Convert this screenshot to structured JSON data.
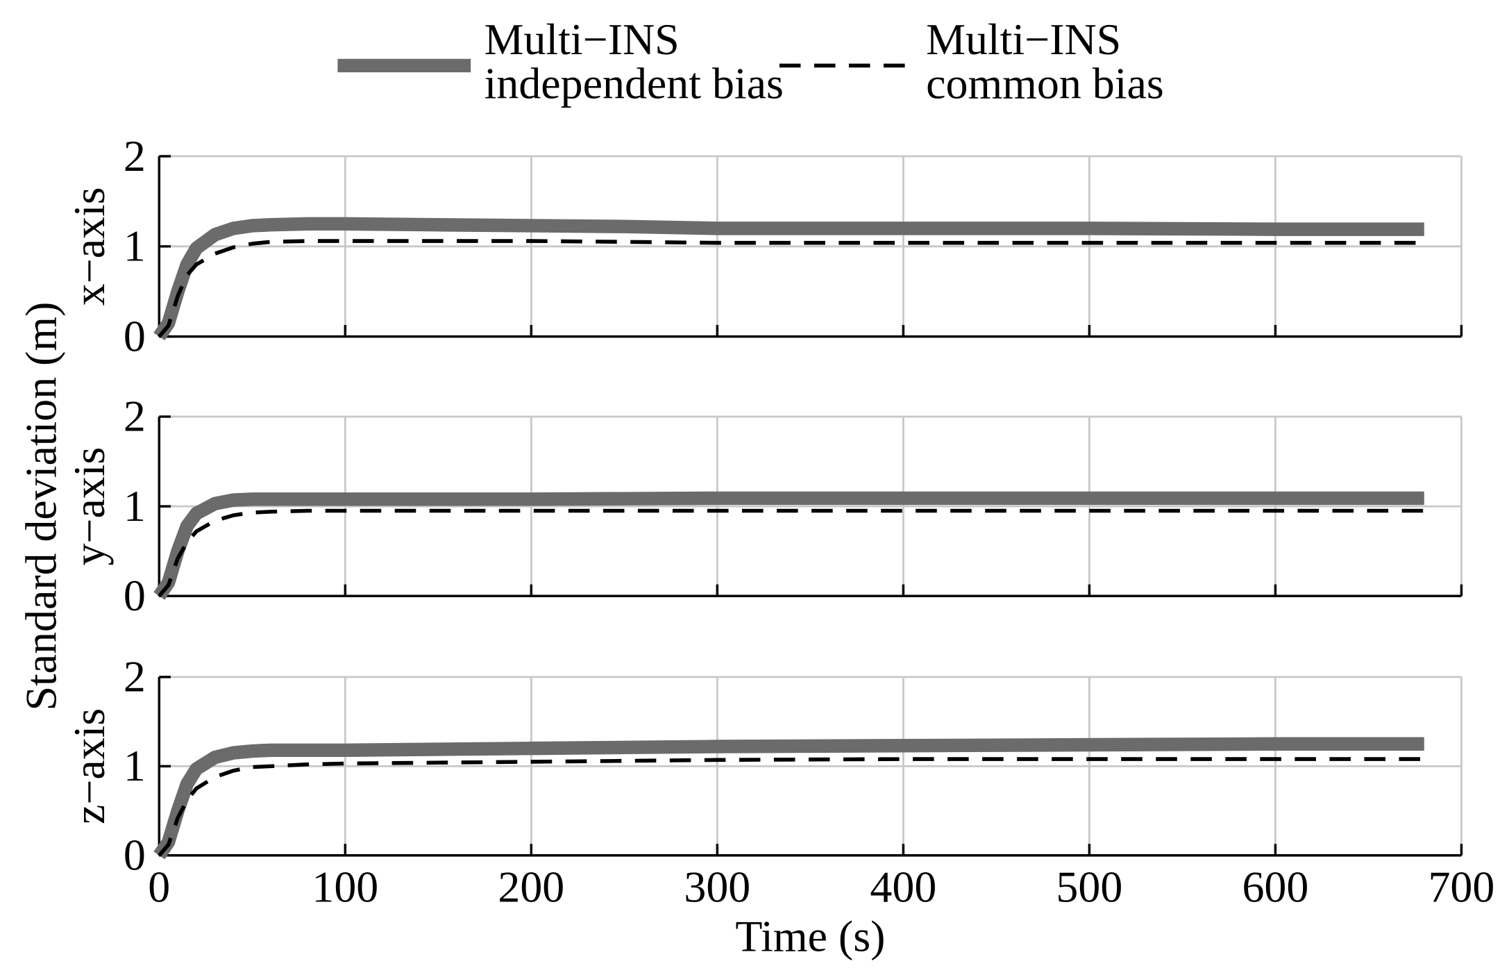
{
  "chart_data": {
    "type": "line",
    "xlabel": "Time (s)",
    "ylabel": "Standard deviation (m)",
    "xlim": [
      0,
      700
    ],
    "xticks": [
      0,
      100,
      200,
      300,
      400,
      500,
      600,
      700
    ],
    "grid": true,
    "legend": {
      "placement": "top-center",
      "entries": [
        {
          "line1": "Multi−INS",
          "line2": "independent bias",
          "color": "#6b6b6b",
          "style": "solid-thick"
        },
        {
          "line1": "Multi−INS",
          "line2": "common bias",
          "color": "#000000",
          "style": "dashed"
        }
      ]
    },
    "panels": [
      {
        "ylabel": "x−axis",
        "ylim": [
          0,
          2
        ],
        "yticks": [
          0,
          1,
          2
        ],
        "series": [
          {
            "name": "Multi−INS independent bias",
            "x": [
              0,
              5,
              10,
              15,
              20,
              30,
              40,
              50,
              60,
              80,
              100,
              150,
              200,
              250,
              300,
              400,
              500,
              600,
              680
            ],
            "y": [
              0,
              0.15,
              0.5,
              0.8,
              0.98,
              1.13,
              1.2,
              1.23,
              1.24,
              1.25,
              1.25,
              1.24,
              1.23,
              1.22,
              1.2,
              1.2,
              1.2,
              1.19,
              1.19
            ]
          },
          {
            "name": "Multi−INS common bias",
            "x": [
              0,
              5,
              10,
              15,
              20,
              30,
              40,
              50,
              60,
              80,
              100,
              150,
              200,
              250,
              300,
              400,
              500,
              600,
              680
            ],
            "y": [
              0,
              0.12,
              0.45,
              0.68,
              0.8,
              0.92,
              0.99,
              1.03,
              1.05,
              1.06,
              1.06,
              1.06,
              1.06,
              1.05,
              1.04,
              1.04,
              1.04,
              1.04,
              1.04
            ]
          }
        ]
      },
      {
        "ylabel": "y−axis",
        "ylim": [
          0,
          2
        ],
        "yticks": [
          0,
          1,
          2
        ],
        "series": [
          {
            "name": "Multi−INS independent bias",
            "x": [
              0,
              5,
              10,
              15,
              20,
              30,
              40,
              50,
              60,
              80,
              100,
              200,
              300,
              400,
              500,
              600,
              680
            ],
            "y": [
              0,
              0.15,
              0.5,
              0.78,
              0.92,
              1.03,
              1.07,
              1.08,
              1.08,
              1.08,
              1.08,
              1.08,
              1.09,
              1.09,
              1.09,
              1.09,
              1.09
            ]
          },
          {
            "name": "Multi−INS common bias",
            "x": [
              0,
              5,
              10,
              15,
              20,
              30,
              40,
              50,
              60,
              80,
              100,
              200,
              300,
              400,
              500,
              600,
              680
            ],
            "y": [
              0,
              0.12,
              0.42,
              0.6,
              0.72,
              0.84,
              0.9,
              0.93,
              0.94,
              0.95,
              0.95,
              0.95,
              0.95,
              0.95,
              0.95,
              0.95,
              0.95
            ]
          }
        ]
      },
      {
        "ylabel": "z−axis",
        "ylim": [
          0,
          2
        ],
        "yticks": [
          0,
          1,
          2
        ],
        "series": [
          {
            "name": "Multi−INS independent bias",
            "x": [
              0,
              5,
              10,
              15,
              20,
              30,
              40,
              50,
              60,
              80,
              100,
              200,
              300,
              400,
              500,
              600,
              680
            ],
            "y": [
              0,
              0.15,
              0.5,
              0.8,
              0.97,
              1.1,
              1.15,
              1.17,
              1.18,
              1.18,
              1.18,
              1.2,
              1.22,
              1.23,
              1.24,
              1.25,
              1.25
            ]
          },
          {
            "name": "Multi−INS common bias",
            "x": [
              0,
              5,
              10,
              15,
              20,
              30,
              40,
              50,
              60,
              80,
              100,
              200,
              300,
              400,
              500,
              600,
              680
            ],
            "y": [
              0,
              0.12,
              0.42,
              0.62,
              0.75,
              0.88,
              0.95,
              0.99,
              1.0,
              1.02,
              1.03,
              1.05,
              1.07,
              1.08,
              1.08,
              1.08,
              1.08
            ]
          }
        ]
      }
    ]
  }
}
